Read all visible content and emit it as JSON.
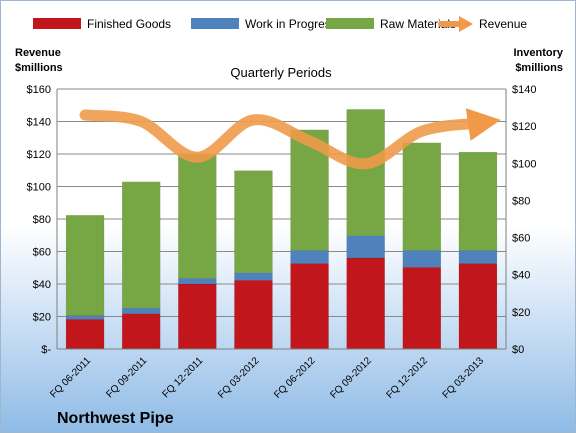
{
  "chart_data": {
    "type": "bar",
    "title": "",
    "subtitle": "Quarterly Periods",
    "company": "Northwest Pipe",
    "left_axis_title": [
      "Revenue",
      "$millions"
    ],
    "right_axis_title": [
      "Inventory",
      "$millions"
    ],
    "categories": [
      "FQ 06-2011",
      "FQ 09-2011",
      "FQ 12-2011",
      "FQ 03-2012",
      "FQ 06-2012",
      "FQ 09-2012",
      "FQ 12-2012",
      "FQ 03-2013"
    ],
    "left_ticks": [
      "$-",
      "$20",
      "$40",
      "$60",
      "$80",
      "$100",
      "$120",
      "$140",
      "$160"
    ],
    "right_ticks": [
      "$0",
      "$20",
      "$40",
      "$60",
      "$80",
      "$100",
      "$120",
      "$140"
    ],
    "left_ylim": [
      0,
      160
    ],
    "right_ylim": [
      0,
      140
    ],
    "stacked": true,
    "grid": true,
    "legend_position": "top",
    "series": [
      {
        "name": "Finished Goods",
        "axis": "right",
        "color": "#c0161c",
        "values": [
          16,
          19,
          35,
          37,
          46,
          49,
          44,
          46
        ]
      },
      {
        "name": "Work in Progress",
        "axis": "right",
        "color": "#4f81bd",
        "values": [
          2,
          3,
          3,
          4,
          7,
          12,
          9,
          7
        ]
      },
      {
        "name": "Raw Materials",
        "axis": "right",
        "color": "#77a744",
        "values": [
          54,
          68,
          67,
          55,
          65,
          68,
          58,
          53
        ]
      }
    ],
    "line_series": {
      "name": "Revenue",
      "axis": "left",
      "color": "#f09a49",
      "values": [
        144,
        140,
        118,
        141,
        128,
        114,
        134,
        139
      ]
    }
  }
}
